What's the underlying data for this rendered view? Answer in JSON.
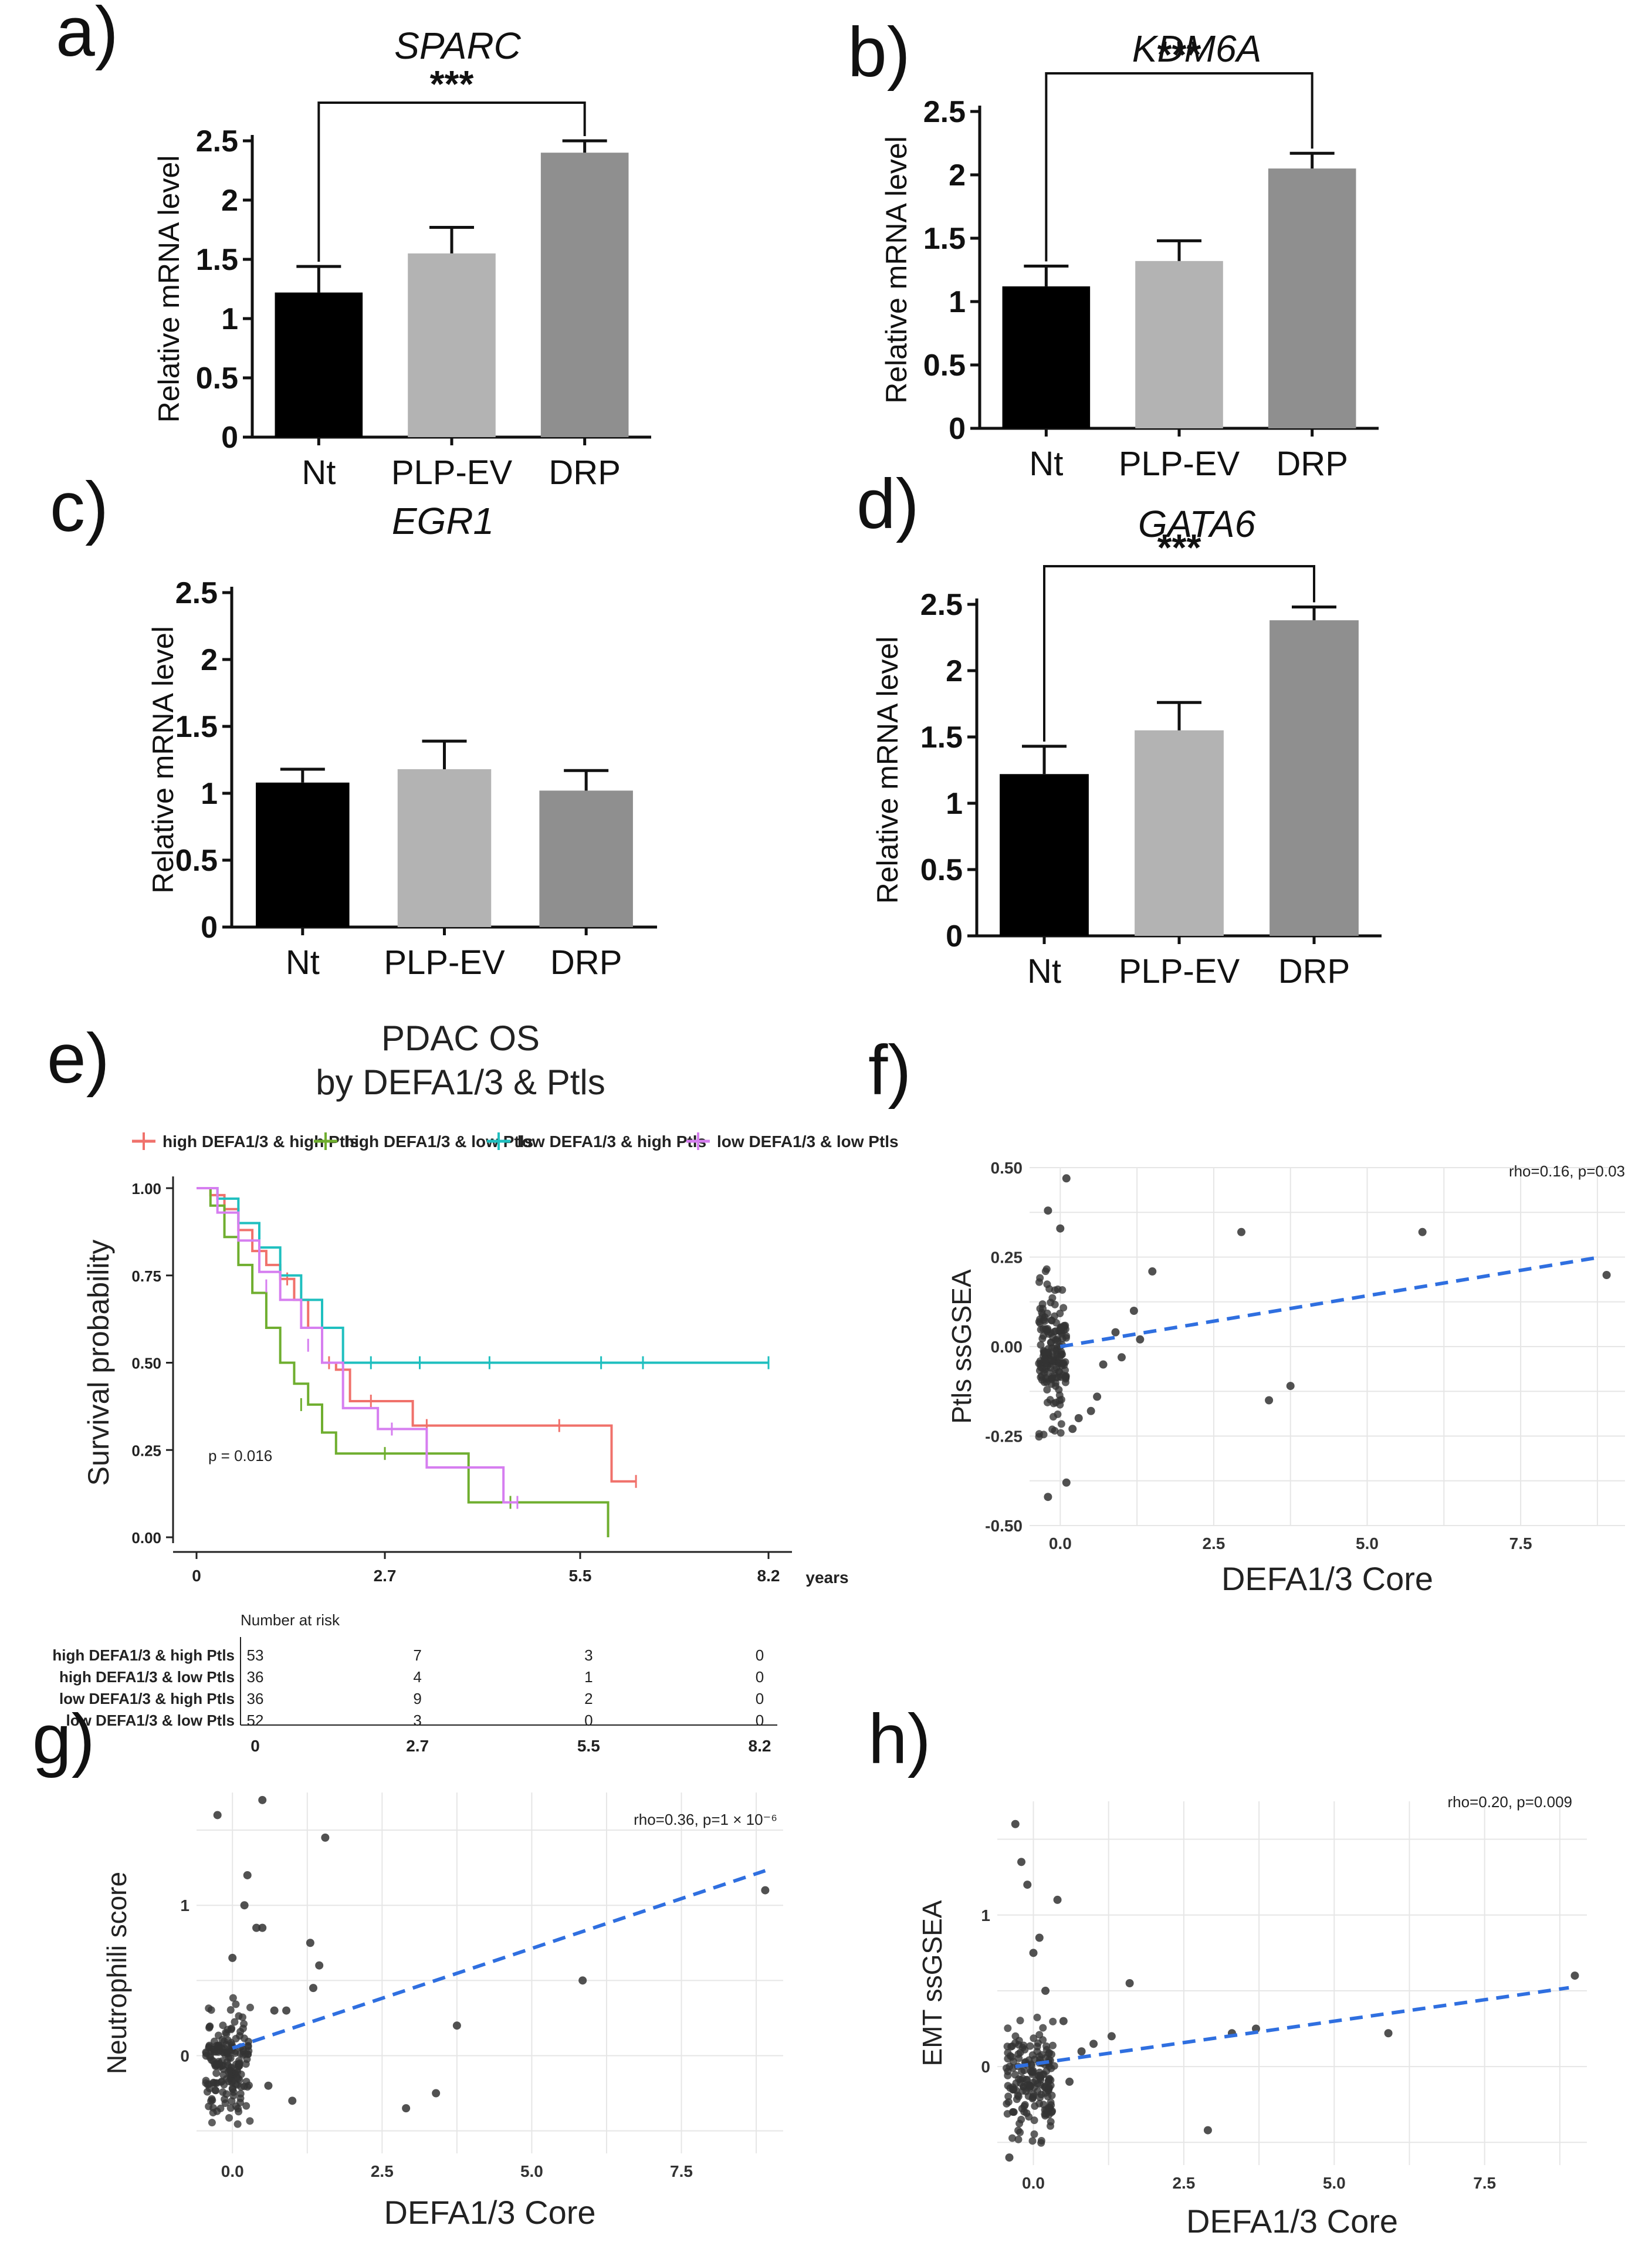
{
  "colors": {
    "nt": "#000000",
    "plp": "#b3b3b3",
    "drp": "#8f8f8f",
    "km_red": "#f0716b",
    "km_green": "#6fae2f",
    "km_cyan": "#1fbfbf",
    "km_purple": "#d67ef0",
    "trend": "#2f6fe0",
    "point": "#333333",
    "grid": "#e6e6e6"
  },
  "chart_data": [
    {
      "id": "a",
      "panel_label": "a)",
      "type": "bar",
      "title": "SPARC",
      "ylabel": "Relative mRNA level",
      "ylim": [
        0,
        2.5
      ],
      "yticks": [
        0,
        0.5,
        1,
        1.5,
        2,
        2.5
      ],
      "ytick_labels": [
        "0",
        "0.5",
        "1",
        "1.5",
        "2",
        "2.5"
      ],
      "categories": [
        "Nt",
        "PLP-EV",
        "DRP"
      ],
      "values": [
        1.22,
        1.55,
        2.4
      ],
      "errors": [
        0.22,
        0.22,
        0.1
      ],
      "significance": "***",
      "sig_pair": [
        0,
        2
      ]
    },
    {
      "id": "b",
      "panel_label": "b)",
      "type": "bar",
      "title": "KDM6A",
      "ylabel": "Relative mRNA level",
      "ylim": [
        0,
        2.5
      ],
      "yticks": [
        0,
        0.5,
        1,
        1.5,
        2,
        2.5
      ],
      "ytick_labels": [
        "0",
        "0.5",
        "1",
        "1.5",
        "2",
        "2.5"
      ],
      "categories": [
        "Nt",
        "PLP-EV",
        "DRP"
      ],
      "values": [
        1.12,
        1.32,
        2.05
      ],
      "errors": [
        0.16,
        0.16,
        0.12
      ],
      "significance": "***",
      "sig_pair": [
        0,
        2
      ]
    },
    {
      "id": "c",
      "panel_label": "c)",
      "type": "bar",
      "title": "EGR1",
      "ylabel": "Relative mRNA level",
      "ylim": [
        0,
        2.5
      ],
      "yticks": [
        0,
        0.5,
        1,
        1.5,
        2,
        2.5
      ],
      "ytick_labels": [
        "0",
        "0.5",
        "1",
        "1.5",
        "2",
        "2.5"
      ],
      "categories": [
        "Nt",
        "PLP-EV",
        "DRP"
      ],
      "values": [
        1.08,
        1.18,
        1.02
      ],
      "errors": [
        0.1,
        0.21,
        0.15
      ],
      "significance": "",
      "sig_pair": null
    },
    {
      "id": "d",
      "panel_label": "d)",
      "type": "bar",
      "title": "GATA6",
      "ylabel": "Relative mRNA level",
      "ylim": [
        0,
        2.5
      ],
      "yticks": [
        0,
        0.5,
        1,
        1.5,
        2,
        2.5
      ],
      "ytick_labels": [
        "0",
        "0.5",
        "1",
        "1.5",
        "2",
        "2.5"
      ],
      "categories": [
        "Nt",
        "PLP-EV",
        "DRP"
      ],
      "values": [
        1.22,
        1.55,
        2.38
      ],
      "errors": [
        0.21,
        0.21,
        0.1
      ],
      "significance": "***",
      "sig_pair": [
        0,
        2
      ]
    },
    {
      "id": "e",
      "panel_label": "e)",
      "type": "line",
      "subtype": "kaplan-meier",
      "title": "PDAC OS",
      "subtitle": "by DEFA1/3 & Ptls",
      "ylabel": "Survival probability",
      "xlabel": "years",
      "xlim": [
        0,
        8.2
      ],
      "ylim": [
        0,
        1
      ],
      "xticks": [
        0,
        2.7,
        5.5,
        8.2
      ],
      "xtick_labels": [
        "0",
        "2.7",
        "5.5",
        "8.2"
      ],
      "yticks": [
        0,
        0.25,
        0.5,
        0.75,
        1
      ],
      "ytick_labels": [
        "0.00",
        "0.25",
        "0.50",
        "0.75",
        "1.00"
      ],
      "pvalue": "p = 0.016",
      "series": [
        {
          "name": "high DEFA1/3 & high Ptls",
          "color": "#f0716b",
          "x": [
            0,
            0.2,
            0.4,
            0.6,
            0.8,
            1.0,
            1.2,
            1.4,
            1.6,
            1.8,
            2.0,
            2.2,
            3.1,
            5.95,
            6.3
          ],
          "y": [
            1.0,
            0.98,
            0.94,
            0.88,
            0.82,
            0.78,
            0.74,
            0.68,
            0.6,
            0.5,
            0.48,
            0.39,
            0.32,
            0.16,
            0.16
          ],
          "censor": [
            [
              1.3,
              0.74
            ],
            [
              1.9,
              0.5
            ],
            [
              2.5,
              0.39
            ],
            [
              3.3,
              0.32
            ],
            [
              5.2,
              0.32
            ],
            [
              6.3,
              0.16
            ]
          ]
        },
        {
          "name": "high DEFA1/3  & low Ptls",
          "color": "#6fae2f",
          "x": [
            0,
            0.2,
            0.4,
            0.6,
            0.8,
            1.0,
            1.2,
            1.4,
            1.6,
            1.8,
            2.0,
            3.9,
            5.9
          ],
          "y": [
            1.0,
            0.95,
            0.86,
            0.78,
            0.7,
            0.6,
            0.5,
            0.44,
            0.38,
            0.3,
            0.24,
            0.1,
            0.0
          ],
          "censor": [
            [
              1.5,
              0.38
            ],
            [
              2.7,
              0.24
            ],
            [
              3.3,
              0.24
            ],
            [
              4.5,
              0.1
            ]
          ]
        },
        {
          "name": "low DEFA1/3  & high Ptls",
          "color": "#1fbfbf",
          "x": [
            0,
            0.3,
            0.6,
            0.9,
            1.2,
            1.5,
            1.8,
            2.1,
            8.2
          ],
          "y": [
            1.0,
            0.97,
            0.9,
            0.83,
            0.75,
            0.68,
            0.6,
            0.5,
            0.5
          ],
          "censor": [
            [
              2.5,
              0.5
            ],
            [
              3.2,
              0.5
            ],
            [
              4.2,
              0.5
            ],
            [
              5.8,
              0.5
            ],
            [
              6.4,
              0.5
            ],
            [
              8.2,
              0.5
            ]
          ]
        },
        {
          "name": "low DEFA1/3  & low Ptls",
          "color": "#d67ef0",
          "x": [
            0,
            0.3,
            0.6,
            0.9,
            1.2,
            1.5,
            1.8,
            2.1,
            2.6,
            3.3,
            4.4,
            4.6
          ],
          "y": [
            1.0,
            0.93,
            0.85,
            0.76,
            0.68,
            0.6,
            0.5,
            0.37,
            0.31,
            0.2,
            0.1,
            0.1
          ],
          "censor": [
            [
              1.0,
              0.72
            ],
            [
              1.6,
              0.55
            ],
            [
              2.8,
              0.31
            ],
            [
              4.6,
              0.1
            ]
          ]
        }
      ],
      "risk_table": {
        "title": "Number at risk",
        "times": [
          "0",
          "2.7",
          "5.5",
          "8.2"
        ],
        "rows": [
          {
            "label": "high DEFA1/3 & high Ptls",
            "color": "#f0716b",
            "values": [
              "53",
              "7",
              "3",
              "0"
            ]
          },
          {
            "label": "high DEFA1/3  & low Ptls",
            "color": "#6fae2f",
            "values": [
              "36",
              "4",
              "1",
              "0"
            ]
          },
          {
            "label": "low DEFA1/3  & high Ptls",
            "color": "#1fbfbf",
            "values": [
              "36",
              "9",
              "2",
              "0"
            ]
          },
          {
            "label": "low DEFA1/3  & low Ptls",
            "color": "#d67ef0",
            "values": [
              "52",
              "3",
              "0",
              "0"
            ]
          }
        ]
      }
    },
    {
      "id": "f",
      "panel_label": "f)",
      "type": "scatter",
      "xlabel": "DEFA1/3 Core",
      "ylabel": "Ptls ssGSEA",
      "annotation": "rho=0.16, p=0.03",
      "xlim": [
        -0.5,
        9.2
      ],
      "ylim": [
        -0.5,
        0.5
      ],
      "xticks": [
        0,
        2.5,
        5,
        7.5
      ],
      "xtick_labels": [
        "0.0",
        "2.5",
        "5.0",
        "7.5"
      ],
      "yticks": [
        -0.5,
        -0.25,
        0,
        0.25,
        0.5
      ],
      "ytick_labels": [
        "-0.50",
        "-0.25",
        "0.00",
        "0.25",
        "0.50"
      ],
      "trend": {
        "x": [
          0,
          8.8
        ],
        "y": [
          0.0,
          0.25
        ]
      },
      "outliers": [
        [
          0.1,
          0.47
        ],
        [
          -0.2,
          0.38
        ],
        [
          0.0,
          0.33
        ],
        [
          2.95,
          0.32
        ],
        [
          5.9,
          0.32
        ],
        [
          8.9,
          0.2
        ],
        [
          1.5,
          0.21
        ],
        [
          1.2,
          0.1
        ],
        [
          3.4,
          -0.15
        ],
        [
          3.75,
          -0.11
        ],
        [
          0.5,
          -0.18
        ],
        [
          0.3,
          -0.2
        ],
        [
          0.6,
          -0.14
        ],
        [
          -0.2,
          -0.42
        ],
        [
          0.1,
          -0.38
        ],
        [
          0.9,
          0.04
        ],
        [
          1.3,
          0.02
        ],
        [
          0.7,
          -0.05
        ],
        [
          1.0,
          -0.03
        ],
        [
          0.2,
          -0.23
        ]
      ],
      "cluster": {
        "x": [
          -0.35,
          0.1
        ],
        "y": [
          -0.32,
          0.28
        ],
        "count": 170,
        "seed": 11
      }
    },
    {
      "id": "g",
      "panel_label": "g)",
      "type": "scatter",
      "xlabel": "DEFA1/3 Core",
      "ylabel": "Neutrophili score",
      "annotation": "rho=0.36, p=1 × 10⁻⁶",
      "xlim": [
        -0.6,
        9.2
      ],
      "ylim": [
        -0.65,
        1.75
      ],
      "xticks": [
        0,
        2.5,
        5,
        7.5
      ],
      "xtick_labels": [
        "0.0",
        "2.5",
        "5.0",
        "7.5"
      ],
      "yticks": [
        0,
        1
      ],
      "ytick_labels": [
        "0",
        "1"
      ],
      "trend": {
        "x": [
          0,
          8.9
        ],
        "y": [
          0.05,
          1.23
        ]
      },
      "outliers": [
        [
          0.5,
          1.7
        ],
        [
          -0.25,
          1.6
        ],
        [
          1.55,
          1.45
        ],
        [
          0.25,
          1.2
        ],
        [
          0.4,
          0.85
        ],
        [
          0.5,
          0.85
        ],
        [
          1.3,
          0.75
        ],
        [
          1.45,
          0.6
        ],
        [
          1.35,
          0.45
        ],
        [
          5.85,
          0.5
        ],
        [
          8.9,
          1.1
        ],
        [
          3.75,
          0.2
        ],
        [
          3.4,
          -0.25
        ],
        [
          2.9,
          -0.35
        ],
        [
          0.7,
          0.3
        ],
        [
          0.9,
          0.3
        ],
        [
          1.0,
          -0.3
        ],
        [
          0.6,
          -0.2
        ],
        [
          0.2,
          1.0
        ],
        [
          0.0,
          0.65
        ]
      ],
      "cluster": {
        "x": [
          -0.45,
          0.3
        ],
        "y": [
          -0.6,
          0.5
        ],
        "count": 180,
        "seed": 23
      }
    },
    {
      "id": "h",
      "panel_label": "h)",
      "type": "scatter",
      "xlabel": "DEFA1/3 Core",
      "ylabel": "EMT ssGSEA",
      "annotation": "rho=0.20, p=0.009",
      "xlim": [
        -0.6,
        9.2
      ],
      "ylim": [
        -0.65,
        1.75
      ],
      "xticks": [
        0,
        2.5,
        5,
        7.5
      ],
      "xtick_labels": [
        "0.0",
        "2.5",
        "5.0",
        "7.5"
      ],
      "yticks": [
        0,
        1
      ],
      "ytick_labels": [
        "0",
        "1"
      ],
      "trend": {
        "x": [
          -0.3,
          8.9
        ],
        "y": [
          0.0,
          0.52
        ]
      },
      "outliers": [
        [
          -0.3,
          1.6
        ],
        [
          -0.2,
          1.35
        ],
        [
          -0.1,
          1.2
        ],
        [
          0.4,
          1.1
        ],
        [
          0.1,
          0.85
        ],
        [
          1.6,
          0.55
        ],
        [
          3.3,
          0.22
        ],
        [
          3.7,
          0.25
        ],
        [
          5.9,
          0.22
        ],
        [
          9.0,
          0.6
        ],
        [
          2.9,
          -0.42
        ],
        [
          1.0,
          0.15
        ],
        [
          1.3,
          0.2
        ],
        [
          0.8,
          0.1
        ],
        [
          0.6,
          -0.1
        ],
        [
          0.3,
          -0.3
        ],
        [
          0.2,
          0.5
        ],
        [
          0.5,
          0.3
        ],
        [
          -0.4,
          -0.6
        ],
        [
          0.0,
          0.75
        ]
      ],
      "cluster": {
        "x": [
          -0.45,
          0.35
        ],
        "y": [
          -0.6,
          0.45
        ],
        "count": 180,
        "seed": 37
      }
    }
  ]
}
